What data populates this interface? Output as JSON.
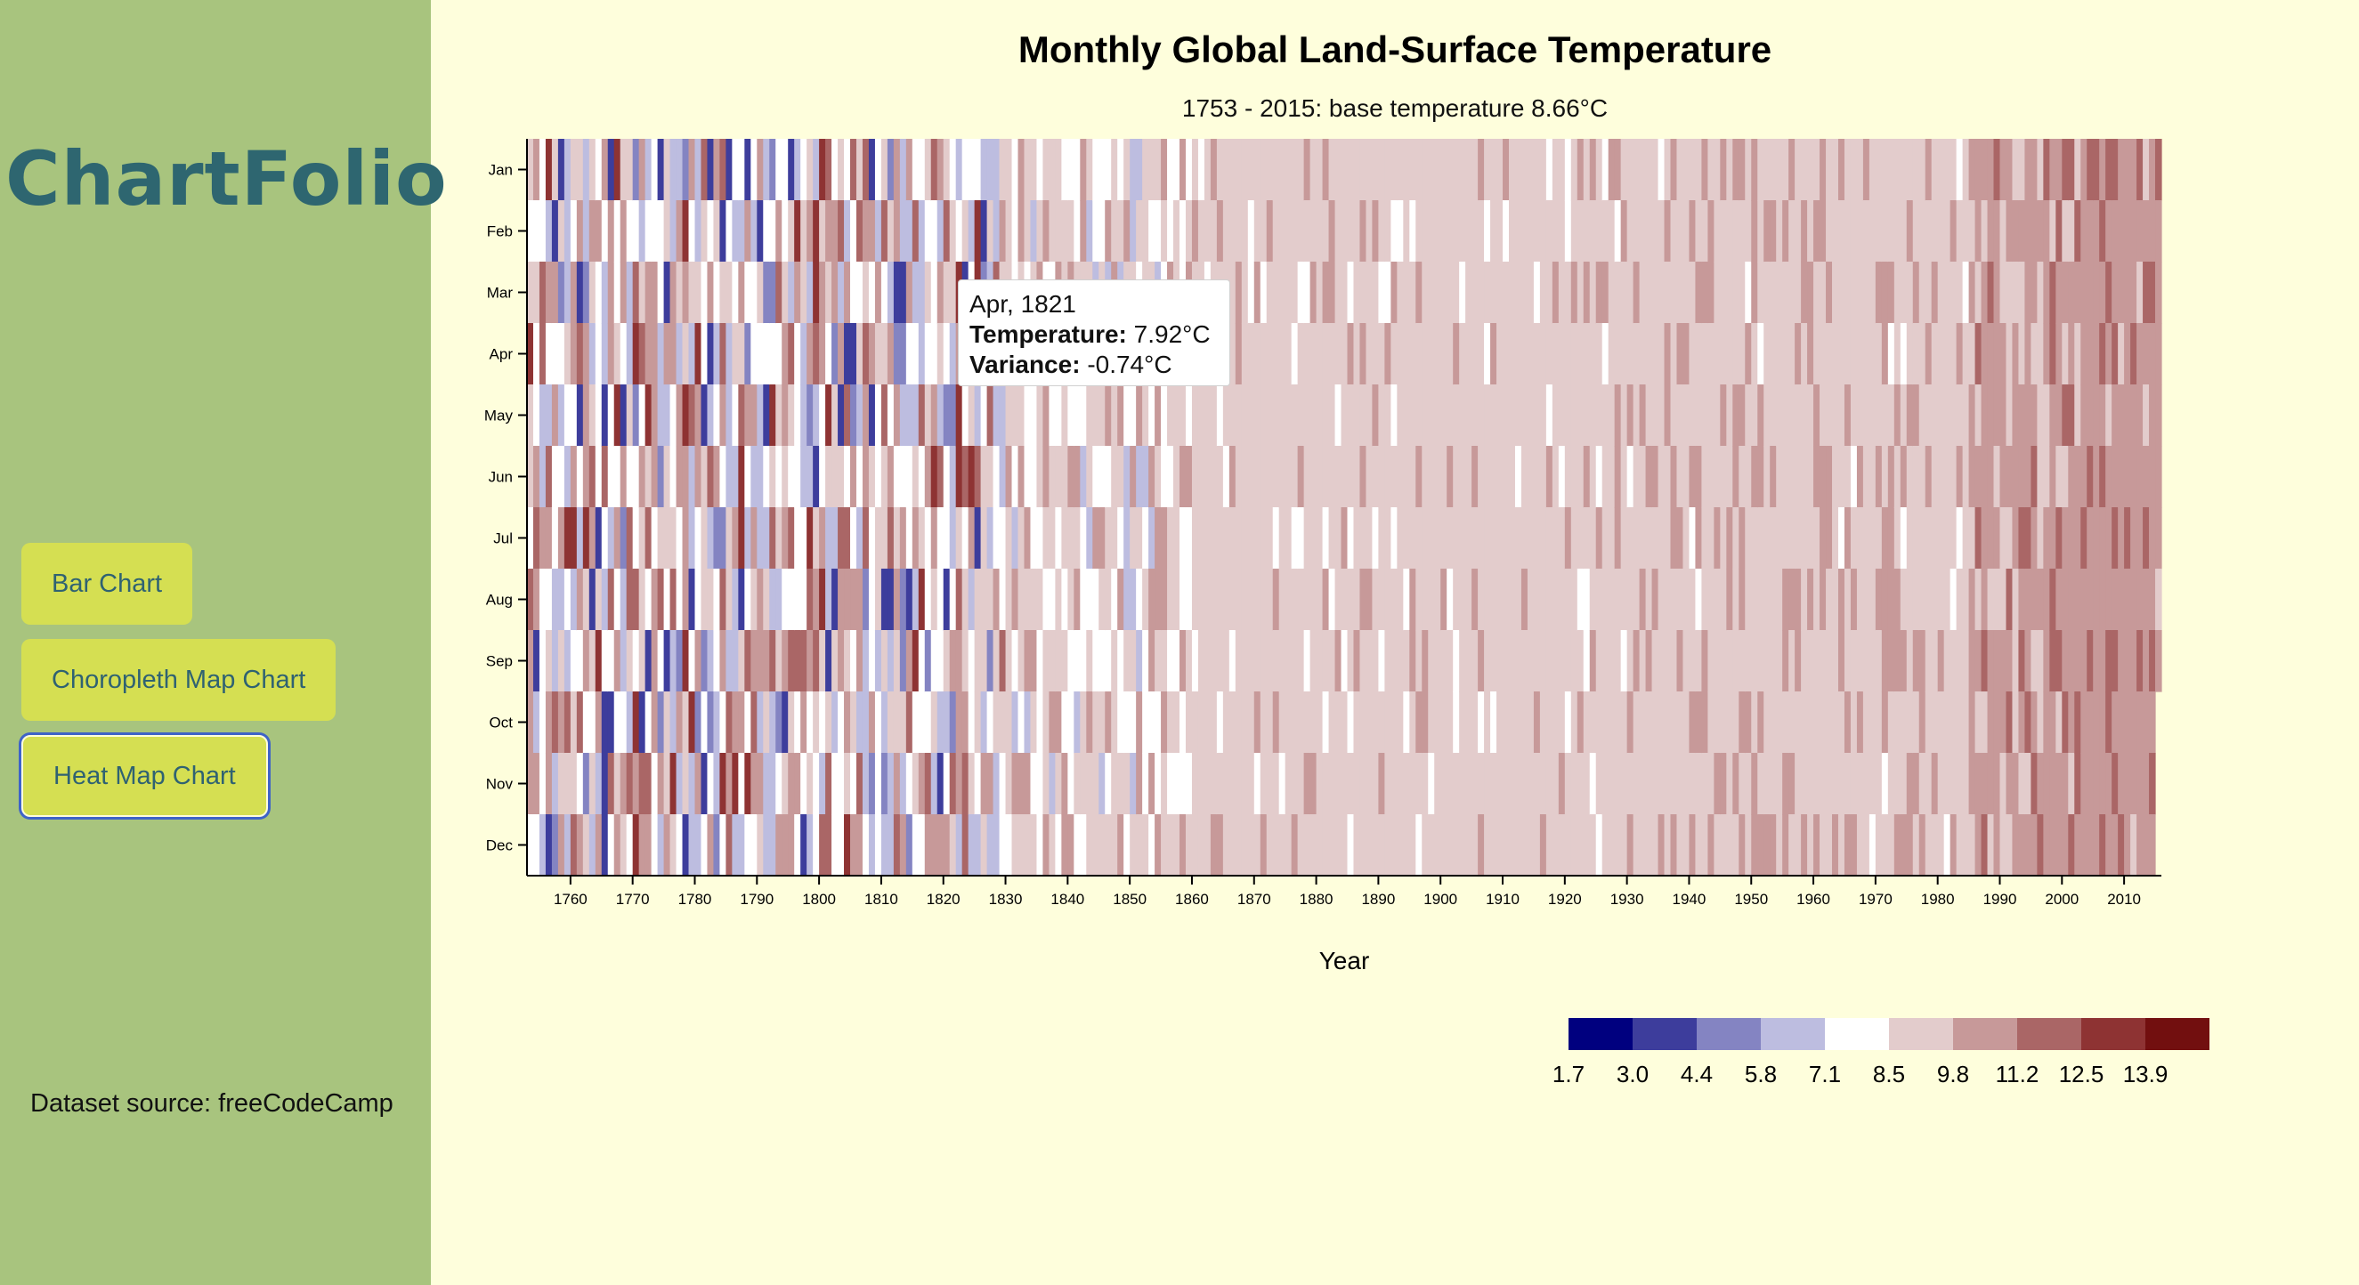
{
  "sidebar": {
    "brand": "ChartFolio",
    "nav": [
      {
        "label": "Bar Chart"
      },
      {
        "label": "Choropleth Map Chart"
      },
      {
        "label": "Heat Map Chart"
      }
    ],
    "source": "Dataset source: freeCodeCamp"
  },
  "tooltip": {
    "date": "Apr, 1821",
    "temp_label": "Temperature:",
    "temp_value": "7.92°C",
    "var_label": "Variance:",
    "var_value": "-0.74°C"
  },
  "chart_data": {
    "type": "heatmap",
    "title": "Monthly Global Land-Surface Temperature",
    "subtitle": "1753 - 2015: base temperature 8.66°C",
    "xlabel": "Year",
    "ylabel": "",
    "base_temperature": 8.66,
    "year_range": [
      1753,
      2015
    ],
    "months": [
      "Jan",
      "Feb",
      "Mar",
      "Apr",
      "May",
      "Jun",
      "Jul",
      "Aug",
      "Sep",
      "Oct",
      "Nov",
      "Dec"
    ],
    "x_ticks": [
      1760,
      1770,
      1780,
      1790,
      1800,
      1810,
      1820,
      1830,
      1840,
      1850,
      1860,
      1870,
      1880,
      1890,
      1900,
      1910,
      1920,
      1930,
      1940,
      1950,
      1960,
      1970,
      1980,
      1990,
      2000,
      2010
    ],
    "legend_thresholds": [
      1.7,
      3.0,
      4.4,
      5.8,
      7.1,
      8.5,
      9.8,
      11.2,
      12.5,
      13.9
    ],
    "legend_labels": [
      "1.7",
      "3.0",
      "4.4",
      "5.8",
      "7.1",
      "8.5",
      "9.8",
      "11.2",
      "12.5",
      "13.9"
    ],
    "colors": [
      "#00007f",
      "#3d3d9c",
      "#8484c2",
      "#bdbde0",
      "#ffffff",
      "#e3cccc",
      "#c79999",
      "#aa6666",
      "#8e3333",
      "#720f0f"
    ],
    "highlight": {
      "year": 1821,
      "month": "Apr",
      "temperature": 7.92,
      "variance": -0.74
    }
  }
}
